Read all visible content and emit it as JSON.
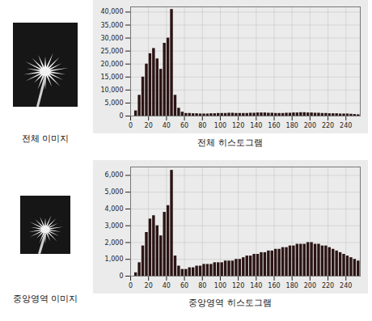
{
  "images": [
    {
      "label": "전체 이미지"
    },
    {
      "label": "중앙영역 이미지"
    }
  ],
  "chart_data": [
    {
      "type": "histogram",
      "title": "전체 히스토그램",
      "color": "#2b1414",
      "grid": true,
      "bins": [
        0,
        4,
        8,
        12,
        16,
        20,
        24,
        28,
        32,
        36,
        40,
        44,
        48,
        52,
        56,
        60,
        64,
        68,
        72,
        76,
        80,
        84,
        88,
        92,
        96,
        100,
        104,
        108,
        112,
        116,
        120,
        124,
        128,
        132,
        136,
        140,
        144,
        148,
        152,
        156,
        160,
        164,
        168,
        172,
        176,
        180,
        184,
        188,
        192,
        196,
        200,
        204,
        208,
        212,
        216,
        220,
        224,
        228,
        232,
        236,
        240,
        244,
        248,
        252,
        256
      ],
      "values": [
        0,
        2000,
        8000,
        15000,
        20000,
        24000,
        26000,
        22000,
        18000,
        28000,
        30000,
        41000,
        8000,
        3000,
        1500,
        1000,
        1000,
        900,
        900,
        800,
        800,
        800,
        900,
        900,
        1000,
        1000,
        1000,
        1100,
        1100,
        1000,
        1000,
        1000,
        1000,
        1100,
        1100,
        1200,
        1200,
        1200,
        1100,
        1100,
        1000,
        1000,
        1000,
        1100,
        1100,
        1200,
        1200,
        1300,
        1300,
        1200,
        1200,
        1100,
        1100,
        1000,
        1000,
        900,
        900,
        900,
        800,
        800,
        800,
        700,
        600,
        500
      ],
      "xlim": [
        0,
        256
      ],
      "xticks": [
        0,
        20,
        40,
        60,
        80,
        100,
        120,
        140,
        160,
        180,
        200,
        220,
        240
      ],
      "ylim": [
        0,
        42000
      ],
      "yticks": [
        0,
        {
          "value": 5000,
          "label": "5,000"
        },
        {
          "value": 10000,
          "label": "10,000"
        },
        {
          "value": 15000,
          "label": "15,000"
        },
        {
          "value": 20000,
          "label": "20,000"
        },
        {
          "value": 25000,
          "label": "25,000"
        },
        {
          "value": 30000,
          "label": "30,000"
        },
        {
          "value": 35000,
          "label": "35,000"
        },
        {
          "value": 40000,
          "label": "40,000"
        }
      ]
    },
    {
      "type": "histogram",
      "title": "중앙영역 히스토그램",
      "color": "#2b1414",
      "grid": true,
      "bins": [
        0,
        4,
        8,
        12,
        16,
        20,
        24,
        28,
        32,
        36,
        40,
        44,
        48,
        52,
        56,
        60,
        64,
        68,
        72,
        76,
        80,
        84,
        88,
        92,
        96,
        100,
        104,
        108,
        112,
        116,
        120,
        124,
        128,
        132,
        136,
        140,
        144,
        148,
        152,
        156,
        160,
        164,
        168,
        172,
        176,
        180,
        184,
        188,
        192,
        196,
        200,
        204,
        208,
        212,
        216,
        220,
        224,
        228,
        232,
        236,
        240,
        244,
        248,
        252,
        256
      ],
      "values": [
        0,
        200,
        800,
        1800,
        2600,
        3400,
        3600,
        3000,
        2400,
        3800,
        4200,
        6300,
        1200,
        600,
        400,
        400,
        500,
        500,
        600,
        600,
        700,
        700,
        700,
        800,
        800,
        800,
        900,
        900,
        900,
        1000,
        1000,
        1100,
        1200,
        1200,
        1300,
        1300,
        1400,
        1400,
        1500,
        1500,
        1600,
        1600,
        1700,
        1700,
        1800,
        1800,
        1900,
        1900,
        1900,
        2000,
        2000,
        1900,
        1900,
        1800,
        1800,
        1700,
        1600,
        1500,
        1400,
        1300,
        1200,
        1100,
        1000,
        900
      ],
      "xlim": [
        0,
        256
      ],
      "xticks": [
        0,
        20,
        40,
        60,
        80,
        100,
        120,
        140,
        160,
        180,
        200,
        220,
        240
      ],
      "ylim": [
        0,
        6500
      ],
      "yticks": [
        0,
        {
          "value": 1000,
          "label": "1,000"
        },
        {
          "value": 2000,
          "label": "2,000"
        },
        {
          "value": 3000,
          "label": "3,000"
        },
        {
          "value": 4000,
          "label": "4,000"
        },
        {
          "value": 5000,
          "label": "5,000"
        },
        {
          "value": 6000,
          "label": "6,000"
        }
      ]
    }
  ]
}
